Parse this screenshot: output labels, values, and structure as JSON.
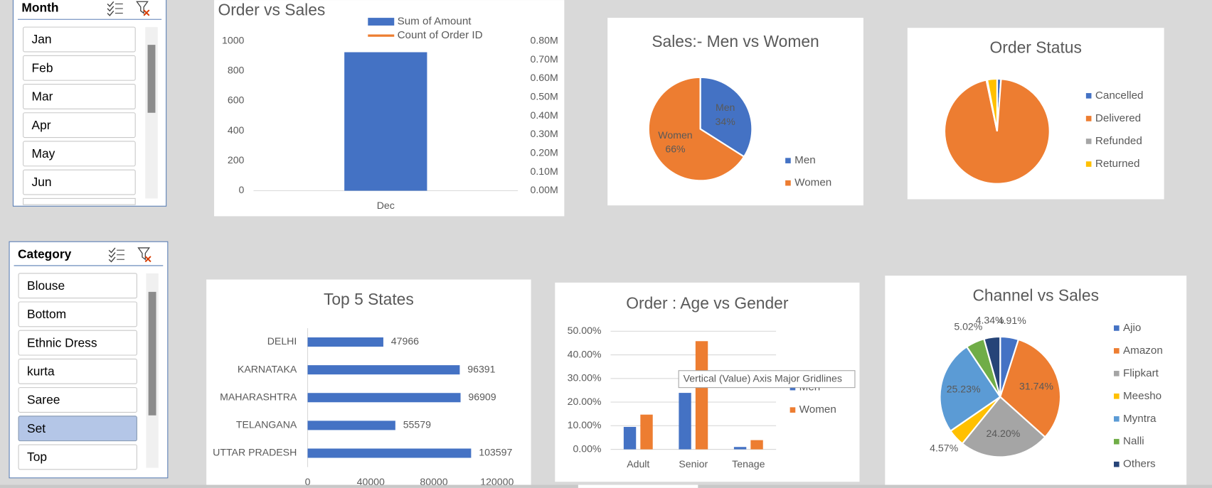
{
  "slicers": [
    {
      "title": "Month",
      "items": [
        "Jan",
        "Feb",
        "Mar",
        "Apr",
        "May",
        "Jun"
      ],
      "selected": []
    },
    {
      "title": "Category",
      "items": [
        "Blouse",
        "Bottom",
        "Ethnic Dress",
        "kurta",
        "Saree",
        "Set",
        "Top"
      ],
      "selected": [
        5
      ]
    }
  ],
  "tooltip": "Vertical (Value) Axis Major Gridlines",
  "chart_data": [
    {
      "type": "bar",
      "title": "Order vs Sales",
      "categories": [
        "Dec"
      ],
      "series": [
        {
          "name": "Sum of Amount",
          "color": "#4472c4",
          "axis": "y2",
          "values": [
            740000
          ]
        },
        {
          "name": "Count of Order ID",
          "color": "#ed7d31",
          "type": "line",
          "values": [
            null
          ]
        }
      ],
      "ylim": [
        0,
        1000
      ],
      "yticks": [
        0,
        200,
        400,
        600,
        800,
        1000
      ],
      "y2lim": [
        0,
        800000
      ],
      "y2ticks": [
        {
          "value": 0,
          "label": "0.00M"
        },
        {
          "value": 100000,
          "label": "0.10M"
        },
        {
          "value": 200000,
          "label": "0.20M"
        },
        {
          "value": 300000,
          "label": "0.30M"
        },
        {
          "value": 400000,
          "label": "0.40M"
        },
        {
          "value": 500000,
          "label": "0.50M"
        },
        {
          "value": 600000,
          "label": "0.60M"
        },
        {
          "value": 700000,
          "label": "0.70M"
        },
        {
          "value": 800000,
          "label": "0.80M"
        }
      ],
      "grid": false,
      "legend": "top-right"
    },
    {
      "type": "pie",
      "title": "Sales:- Men vs Women",
      "categories": [
        "Men",
        "Women"
      ],
      "values": [
        34,
        66
      ],
      "value_labels": [
        "34%",
        "66%"
      ],
      "label_category": true,
      "colors": [
        "#4472c4",
        "#ed7d31"
      ],
      "legend": "right"
    },
    {
      "type": "pie",
      "title": "Order Status",
      "categories": [
        "Cancelled",
        "Delivered",
        "Refunded",
        "Returned"
      ],
      "values": [
        1.2,
        95.5,
        0.3,
        3
      ],
      "colors": [
        "#4472c4",
        "#ed7d31",
        "#a5a5a5",
        "#ffc000"
      ],
      "legend": "right"
    },
    {
      "type": "barh",
      "title": "Top 5 States",
      "categories": [
        "DELHI",
        "KARNATAKA",
        "MAHARASHTRA",
        "TELANGANA",
        "UTTAR PRADESH"
      ],
      "values": [
        47966,
        96391,
        96909,
        55579,
        103597
      ],
      "color": "#4472c4",
      "xlim": [
        0,
        120000
      ],
      "xticks": [
        0,
        40000,
        80000,
        120000
      ]
    },
    {
      "type": "bar",
      "title": "Order : Age vs Gender",
      "categories": [
        "Adult",
        "Senior",
        "Tenage"
      ],
      "series": [
        {
          "name": "Men",
          "color": "#4472c4",
          "values": [
            9.5,
            23.9,
            1.0
          ]
        },
        {
          "name": "Women",
          "color": "#ed7d31",
          "values": [
            14.7,
            45.8,
            3.9
          ]
        }
      ],
      "ylim": [
        0,
        50
      ],
      "yticks": [
        {
          "value": 0,
          "label": "0.00%"
        },
        {
          "value": 10,
          "label": "10.00%"
        },
        {
          "value": 20,
          "label": "20.00%"
        },
        {
          "value": 30,
          "label": "30.00%"
        },
        {
          "value": 40,
          "label": "40.00%"
        },
        {
          "value": 50,
          "label": "50.00%"
        }
      ],
      "grid": true,
      "legend": "right"
    },
    {
      "type": "pie",
      "title": "Channel vs Sales",
      "categories": [
        "Ajio",
        "Amazon",
        "Flipkart",
        "Meesho",
        "Myntra",
        "Nalli",
        "Others"
      ],
      "values": [
        4.91,
        31.74,
        24.2,
        4.57,
        25.23,
        5.02,
        4.34
      ],
      "value_labels": [
        "4.91%",
        "31.74%",
        "24.20%",
        "4.57%",
        "25.23%",
        "5.02%",
        "4.34%"
      ],
      "colors": [
        "#4472c4",
        "#ed7d31",
        "#a5a5a5",
        "#ffc000",
        "#5b9bd5",
        "#70ad47",
        "#264478"
      ],
      "legend": "right"
    }
  ]
}
